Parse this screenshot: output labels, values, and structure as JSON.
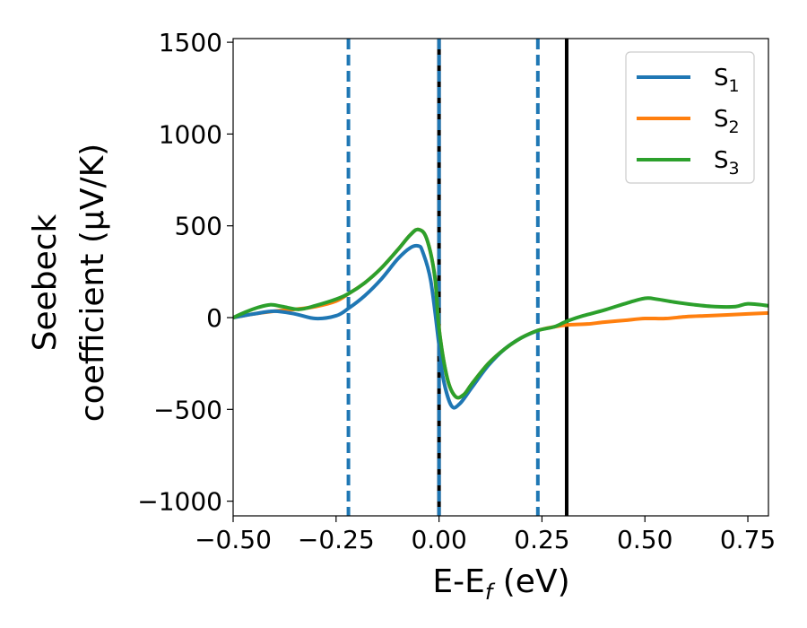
{
  "chart_data": {
    "type": "line",
    "xlabel": "E-E",
    "xlabel_sub": "f",
    "xlabel_unit": " (eV)",
    "ylabel_line1": "Seebeck",
    "ylabel_line2": "coefficient  (μV/K)",
    "xlim": [
      -0.5,
      0.8
    ],
    "ylim": [
      -1080,
      1520
    ],
    "x_ticks": [
      -0.5,
      -0.25,
      0.0,
      0.25,
      0.5,
      0.75
    ],
    "x_tick_labels": [
      "−0.50",
      "−0.25",
      "0.00",
      "0.25",
      "0.50",
      "0.75"
    ],
    "y_ticks": [
      -1000,
      -500,
      0,
      500,
      1000,
      1500
    ],
    "y_tick_labels": [
      "−1000",
      "−500",
      "0",
      "500",
      "1000",
      "1500"
    ],
    "grid": false,
    "legend_position": "top-right",
    "vlines": [
      {
        "x": -0.22,
        "style": "dashed",
        "color": "#1f77b4"
      },
      {
        "x": 0.0,
        "style": "solid",
        "color": "#000000"
      },
      {
        "x": 0.0,
        "style": "dashed",
        "color": "#1f77b4"
      },
      {
        "x": 0.24,
        "style": "dashed",
        "color": "#1f77b4"
      },
      {
        "x": 0.31,
        "style": "solid",
        "color": "#000000"
      }
    ],
    "series": [
      {
        "name": "S",
        "name_sub": "1",
        "color": "#1f77b4",
        "x": [
          -0.5,
          -0.45,
          -0.4,
          -0.35,
          -0.3,
          -0.25,
          -0.22,
          -0.18,
          -0.14,
          -0.1,
          -0.07,
          -0.05,
          -0.04,
          -0.02,
          0.0,
          0.01,
          0.03,
          0.05,
          0.08,
          0.12,
          0.16,
          0.2,
          0.24
        ],
        "y": [
          0,
          20,
          35,
          20,
          -5,
          10,
          50,
          120,
          210,
          320,
          380,
          390,
          360,
          200,
          -150,
          -330,
          -480,
          -470,
          -380,
          -260,
          -170,
          -110,
          -70
        ]
      },
      {
        "name": "S",
        "name_sub": "2",
        "color": "#ff7f0e",
        "x": [
          -0.5,
          -0.45,
          -0.4,
          -0.35,
          -0.3,
          -0.25,
          -0.22,
          -0.18,
          -0.14,
          -0.1,
          -0.07,
          -0.05,
          -0.03,
          -0.01,
          0.0,
          0.02,
          0.04,
          0.06,
          0.08,
          0.12,
          0.16,
          0.2,
          0.24,
          0.28,
          0.31,
          0.36,
          0.4,
          0.45,
          0.5,
          0.55,
          0.6,
          0.65,
          0.7,
          0.75,
          0.8
        ],
        "y": [
          0,
          20,
          35,
          45,
          60,
          90,
          130,
          190,
          270,
          370,
          450,
          480,
          430,
          220,
          -60,
          -330,
          -430,
          -420,
          -360,
          -250,
          -170,
          -110,
          -70,
          -50,
          -40,
          -35,
          -25,
          -15,
          -5,
          -5,
          5,
          10,
          15,
          20,
          25
        ]
      },
      {
        "name": "S",
        "name_sub": "3",
        "color": "#2ca02c",
        "x": [
          -0.5,
          -0.47,
          -0.44,
          -0.41,
          -0.38,
          -0.34,
          -0.3,
          -0.25,
          -0.22,
          -0.18,
          -0.14,
          -0.1,
          -0.07,
          -0.05,
          -0.03,
          -0.01,
          0.0,
          0.02,
          0.04,
          0.06,
          0.08,
          0.12,
          0.16,
          0.2,
          0.24,
          0.28,
          0.31,
          0.35,
          0.4,
          0.45,
          0.5,
          0.53,
          0.57,
          0.62,
          0.67,
          0.72,
          0.75,
          0.8
        ],
        "y": [
          0,
          30,
          55,
          70,
          60,
          45,
          65,
          100,
          130,
          190,
          270,
          370,
          450,
          480,
          430,
          220,
          -60,
          -330,
          -430,
          -420,
          -360,
          -250,
          -170,
          -110,
          -70,
          -50,
          -20,
          10,
          40,
          75,
          105,
          100,
          85,
          70,
          60,
          60,
          75,
          65
        ]
      }
    ]
  }
}
